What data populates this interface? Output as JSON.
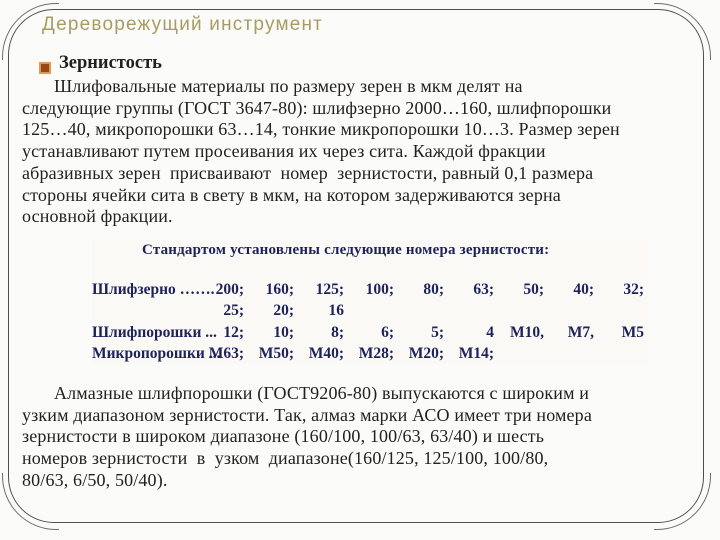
{
  "slide": {
    "title": "Дереворежущий инструмент",
    "bullet_heading": "Зернистость",
    "paragraph1": {
      "lines": [
        "Шлифовальные материалы по размеру зерен в мкм делят на",
        "следующие группы (ГОСТ 3647-80): шлифзерно 2000…160, шлифпорошки",
        "125…40, микропорошки 63…14, тонкие микропорошки 10…3. Размер зерен",
        "устанавливают путем просеивания их через сита. Каждой фракции",
        "абразивных зерен  присваивают  номер  зернистости, равный 0,1 размера",
        "стороны ячейки сита в свету в мкм, на котором задерживаются зерна",
        "основной фракции."
      ]
    },
    "grit_image": {
      "caption": "Стандартом установлены следующие номера зернистости:",
      "rows": [
        {
          "label": "Шлифзерно …….",
          "values": [
            "200;",
            "160;",
            "125;",
            "100;",
            "80;",
            "63;",
            "50;",
            "40;",
            "32;"
          ]
        },
        {
          "label": "",
          "values": [
            "25;",
            "20;",
            "16"
          ]
        },
        {
          "label": "Шлифпорошки ...",
          "values": [
            "12;",
            "10;",
            "8;",
            "6;",
            "5;",
            "4",
            "М10,",
            "М7,",
            "М5"
          ]
        },
        {
          "label": "Микропорошки ...",
          "values": [
            "М63;",
            "М50;",
            "М40;",
            "М28;",
            "М20;",
            "М14;"
          ]
        }
      ]
    },
    "paragraph2": {
      "lines": [
        "Алмазные шлифпорошки (ГОСТ9206-80) выпускаются с широким и",
        "узким диапазоном зернистости. Так, алмаз марки АСО имеет три номера",
        "зернистости в широком диапазоне (160/100, 100/63, 63/40) и шесть",
        "номеров зернистости  в  узком  диапазоне(160/125, 125/100, 100/80,",
        "80/63, 6/50, 50/40)."
      ]
    },
    "colors": {
      "title_text": "#a79d62",
      "body_text": "#23211e",
      "grit_image_text": "#1d2259",
      "bullet_fill": "#9c4612",
      "bullet_ring": "#dd9a5e",
      "frame_border": "#4f4f4f"
    }
  }
}
